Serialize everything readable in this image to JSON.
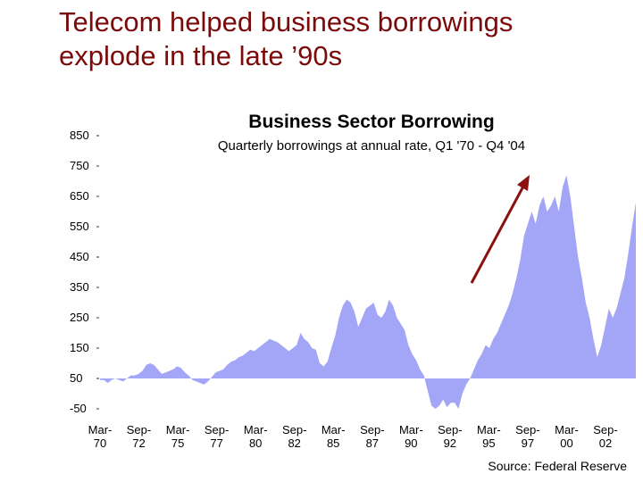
{
  "slide": {
    "title_line1": "Telecom helped business borrowings",
    "title_line2": "explode in the late ’90s",
    "source": "Source: Federal Reserve"
  },
  "colors": {
    "title": "#7b0a0a",
    "area_fill": "#a3a6f7",
    "arrow": "#8b1010"
  },
  "chart_data": {
    "type": "area",
    "title": "Business Sector Borrowing",
    "subtitle": "Quarterly borrowings at annual rate, Q1 '70 - Q4 '04",
    "xlabel": "",
    "ylabel": "",
    "ylim": [
      -50,
      850
    ],
    "yticks": [
      "850",
      "750",
      "650",
      "550",
      "450",
      "350",
      "250",
      "150",
      "50",
      "-50"
    ],
    "xticks": [
      {
        "top": "Mar-",
        "bottom": "70"
      },
      {
        "top": "Sep-",
        "bottom": "72"
      },
      {
        "top": "Mar-",
        "bottom": "75"
      },
      {
        "top": "Sep-",
        "bottom": "77"
      },
      {
        "top": "Mar-",
        "bottom": "80"
      },
      {
        "top": "Sep-",
        "bottom": "82"
      },
      {
        "top": "Mar-",
        "bottom": "85"
      },
      {
        "top": "Sep-",
        "bottom": "87"
      },
      {
        "top": "Mar-",
        "bottom": "90"
      },
      {
        "top": "Sep-",
        "bottom": "92"
      },
      {
        "top": "Mar-",
        "bottom": "95"
      },
      {
        "top": "Sep-",
        "bottom": "97"
      },
      {
        "top": "Mar-",
        "bottom": "00"
      },
      {
        "top": "Sep-",
        "bottom": "02"
      }
    ],
    "grid": false,
    "legend": "none",
    "series": [
      {
        "x_start": "Q1 1970",
        "x_end": "Q4 2004",
        "frequency": "quarterly",
        "values": [
          45,
          45,
          35,
          45,
          50,
          45,
          40,
          50,
          60,
          60,
          65,
          75,
          95,
          100,
          95,
          80,
          65,
          70,
          75,
          80,
          90,
          85,
          70,
          60,
          45,
          40,
          35,
          30,
          40,
          55,
          70,
          75,
          80,
          95,
          105,
          110,
          120,
          125,
          135,
          145,
          140,
          150,
          160,
          170,
          180,
          175,
          170,
          160,
          150,
          140,
          150,
          160,
          200,
          180,
          170,
          150,
          145,
          100,
          90,
          105,
          150,
          190,
          250,
          290,
          310,
          300,
          270,
          220,
          250,
          280,
          290,
          300,
          260,
          250,
          270,
          310,
          290,
          250,
          230,
          210,
          160,
          130,
          110,
          80,
          60,
          10,
          -40,
          -50,
          -40,
          -20,
          -45,
          -30,
          -30,
          -50,
          0,
          30,
          50,
          80,
          110,
          130,
          160,
          150,
          180,
          200,
          230,
          260,
          290,
          330,
          380,
          440,
          520,
          560,
          600,
          560,
          620,
          650,
          600,
          620,
          650,
          600,
          680,
          720,
          650,
          550,
          450,
          380,
          300,
          250,
          180,
          120,
          160,
          220,
          280,
          250,
          280,
          330,
          380,
          460,
          550,
          630
        ]
      }
    ]
  }
}
